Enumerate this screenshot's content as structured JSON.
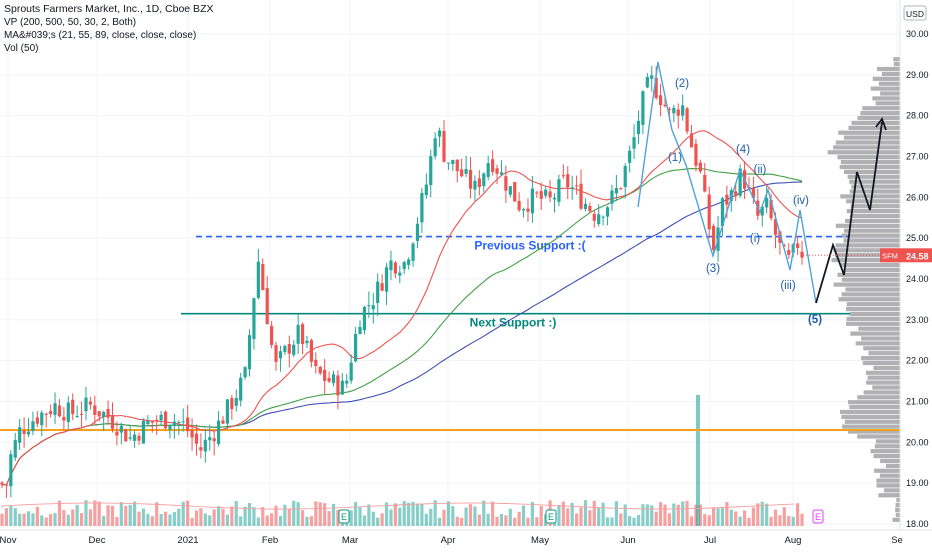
{
  "chart_data": {
    "type": "candlestick",
    "legend_lines": [
      "Sprouts Farmers Market, Inc., 1D, Cboe BZX",
      "VP (200, 500, 50, 30, 2, Both)",
      "MA&#039;s (21, 55, 89, close, close, close)",
      "Vol (50)"
    ],
    "currency": "USD",
    "ylim": [
      18.0,
      30.0
    ],
    "y_ticks": [
      "18.00",
      "19.00",
      "20.00",
      "21.00",
      "22.00",
      "23.00",
      "24.00",
      "25.00",
      "26.00",
      "27.00",
      "28.00",
      "29.00",
      "30.00"
    ],
    "x_ticks": [
      "Nov",
      "Dec",
      "2021",
      "Feb",
      "Mar",
      "Apr",
      "May",
      "Jun",
      "Jul",
      "Aug",
      "Se"
    ],
    "price_label": {
      "ticker": "SFM",
      "value": "24.58",
      "price": 24.58
    },
    "levels": [
      {
        "name": "previous-support",
        "price": 25.04,
        "label": "Previous Support :(",
        "style": "dashed",
        "color": "#2962ff"
      },
      {
        "name": "next-support",
        "price": 23.15,
        "label": "Next Support :)",
        "style": "solid",
        "color": "#00897b"
      },
      {
        "name": "orange-line",
        "price": 20.3,
        "label": "",
        "style": "solid",
        "color": "#f7a21b"
      }
    ],
    "wave_labels": [
      {
        "text": "(1)",
        "x": 675,
        "y": 161
      },
      {
        "text": "(2)",
        "x": 682,
        "y": 87
      },
      {
        "text": "(3)",
        "x": 713,
        "y": 272
      },
      {
        "text": "(4)",
        "x": 743,
        "y": 153
      },
      {
        "text": "(5)",
        "x": 815,
        "y": 323
      },
      {
        "text": "(i)",
        "x": 755,
        "y": 242
      },
      {
        "text": "(ii)",
        "x": 760,
        "y": 173
      },
      {
        "text": "(iii)",
        "x": 788,
        "y": 289
      },
      {
        "text": "(iv)",
        "x": 801,
        "y": 204
      }
    ],
    "earnings_markers": [
      {
        "label": "E",
        "color": "#089981",
        "x": 344
      },
      {
        "label": "E",
        "color": "#089981",
        "x": 551
      },
      {
        "label": "E",
        "color": "#e040fb",
        "x": 818
      }
    ],
    "volume_spike": {
      "x": 698
    },
    "colors": {
      "up": "#26a69a",
      "down": "#ef5350",
      "ma21": "#ef5350",
      "ma55": "#43a047",
      "ma89": "#3f51b5",
      "wave": "#4fa3d8",
      "projection": "#131722",
      "vp": "#a9a9ab"
    }
  }
}
